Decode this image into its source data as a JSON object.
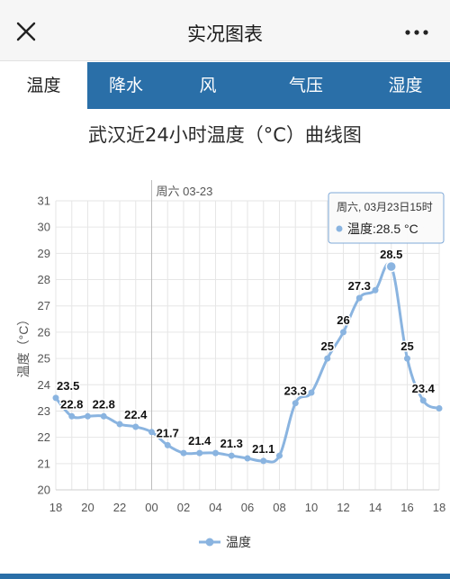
{
  "app": {
    "title": "实况图表"
  },
  "tabs": [
    {
      "label": "温度",
      "active": true
    },
    {
      "label": "降水",
      "active": false
    },
    {
      "label": "风",
      "active": false
    },
    {
      "label": "气压",
      "active": false
    },
    {
      "label": "湿度",
      "active": false
    }
  ],
  "chart_title": "武汉近24小时温度（°C）曲线图",
  "chart_data": {
    "type": "line",
    "x_tick_labels": [
      "18",
      "20",
      "22",
      "00",
      "02",
      "04",
      "06",
      "08",
      "10",
      "12",
      "14",
      "16",
      "18"
    ],
    "hours": [
      "18",
      "19",
      "20",
      "21",
      "22",
      "23",
      "00",
      "01",
      "02",
      "03",
      "04",
      "05",
      "06",
      "07",
      "08",
      "09",
      "10",
      "11",
      "12",
      "13",
      "14",
      "15",
      "16",
      "17",
      "18"
    ],
    "series": [
      {
        "name": "温度",
        "color": "#8ab4e0",
        "values": [
          23.5,
          22.8,
          22.8,
          22.8,
          22.5,
          22.4,
          22.2,
          21.7,
          21.4,
          21.4,
          21.4,
          21.3,
          21.2,
          21.1,
          21.3,
          23.3,
          23.7,
          25,
          26,
          27.3,
          27.6,
          28.5,
          25,
          23.4,
          23.1
        ]
      }
    ],
    "data_labels": [
      {
        "index": 0,
        "text": "23.5"
      },
      {
        "index": 1,
        "text": "22.8"
      },
      {
        "index": 3,
        "text": "22.8"
      },
      {
        "index": 5,
        "text": "22.4"
      },
      {
        "index": 7,
        "text": "21.7"
      },
      {
        "index": 9,
        "text": "21.4"
      },
      {
        "index": 11,
        "text": "21.3"
      },
      {
        "index": 13,
        "text": "21.1"
      },
      {
        "index": 15,
        "text": "23.3"
      },
      {
        "index": 17,
        "text": "25"
      },
      {
        "index": 18,
        "text": "26"
      },
      {
        "index": 19,
        "text": "27.3"
      },
      {
        "index": 21,
        "text": "28.5"
      },
      {
        "index": 22,
        "text": "25"
      },
      {
        "index": 23,
        "text": "23.4"
      }
    ],
    "ylabel": "温度（°C）",
    "ylim": [
      20,
      31
    ],
    "yticks": [
      20,
      21,
      22,
      23,
      24,
      25,
      26,
      27,
      28,
      29,
      30,
      31
    ],
    "grid": true,
    "legend": {
      "position": "bottom-center",
      "label": "温度"
    },
    "crosshair": {
      "label": "周六 03-23",
      "index": 6
    },
    "tooltip": {
      "index": 21,
      "title": "周六, 03月23日15时",
      "series_label": "温度",
      "value_text": ":28.5 °C"
    }
  }
}
